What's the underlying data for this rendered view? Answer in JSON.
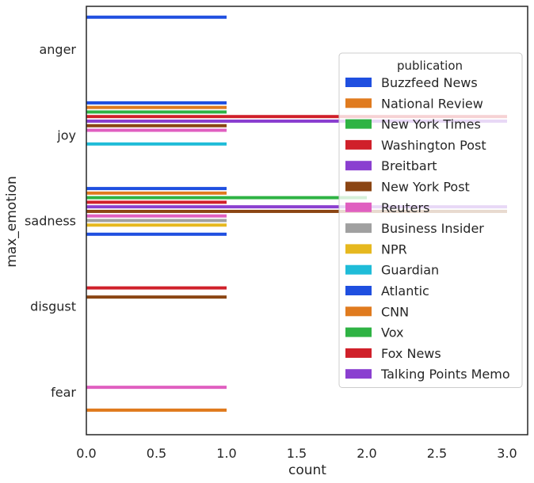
{
  "chart_data": {
    "type": "bar",
    "orientation": "horizontal",
    "title": "",
    "xlabel": "count",
    "ylabel": "max_emotion",
    "xlim": [
      0,
      3.12
    ],
    "x_ticks": [
      "0.0",
      "0.5",
      "1.0",
      "1.5",
      "2.0",
      "2.5",
      "3.0"
    ],
    "categories": [
      "anger",
      "joy",
      "sadness",
      "disgust",
      "fear"
    ],
    "grid": false,
    "legend": {
      "title": "publication",
      "placement": "right"
    },
    "series": [
      {
        "name": "Buzzfeed News",
        "color": "#1f4fe0",
        "values": [
          1,
          1,
          1,
          0,
          0
        ]
      },
      {
        "name": "National Review",
        "color": "#e07b1f",
        "values": [
          0,
          1,
          1,
          0,
          0
        ]
      },
      {
        "name": "New York Times",
        "color": "#2fb344",
        "values": [
          0,
          1,
          2,
          0,
          0
        ]
      },
      {
        "name": "Washington Post",
        "color": "#d0202a",
        "values": [
          0,
          3,
          1,
          1,
          0
        ]
      },
      {
        "name": "Breitbart",
        "color": "#8a3fd0",
        "values": [
          0,
          3,
          3,
          0,
          0
        ]
      },
      {
        "name": "New York Post",
        "color": "#8b4513",
        "values": [
          0,
          1,
          3,
          1,
          0
        ]
      },
      {
        "name": "Reuters",
        "color": "#e05fc0",
        "values": [
          0,
          1,
          1,
          0,
          1
        ]
      },
      {
        "name": "Business Insider",
        "color": "#a0a0a0",
        "values": [
          0,
          0,
          1,
          0,
          0
        ]
      },
      {
        "name": "NPR",
        "color": "#e6b81f",
        "values": [
          0,
          0,
          1,
          0,
          0
        ]
      },
      {
        "name": "Guardian",
        "color": "#1fbcd8",
        "values": [
          0,
          1,
          0,
          0,
          0
        ]
      },
      {
        "name": "Atlantic",
        "color": "#1f4fe0",
        "values": [
          0,
          0,
          1,
          0,
          0
        ]
      },
      {
        "name": "CNN",
        "color": "#e07b1f",
        "values": [
          0,
          0,
          0,
          0,
          1
        ]
      },
      {
        "name": "Vox",
        "color": "#2fb344",
        "values": [
          0,
          0,
          0,
          0,
          0
        ]
      },
      {
        "name": "Fox News",
        "color": "#d0202a",
        "values": [
          0,
          0,
          0,
          0,
          0
        ]
      },
      {
        "name": "Talking Points Memo",
        "color": "#8a3fd0",
        "values": [
          0,
          0,
          0,
          0,
          0
        ]
      }
    ]
  }
}
